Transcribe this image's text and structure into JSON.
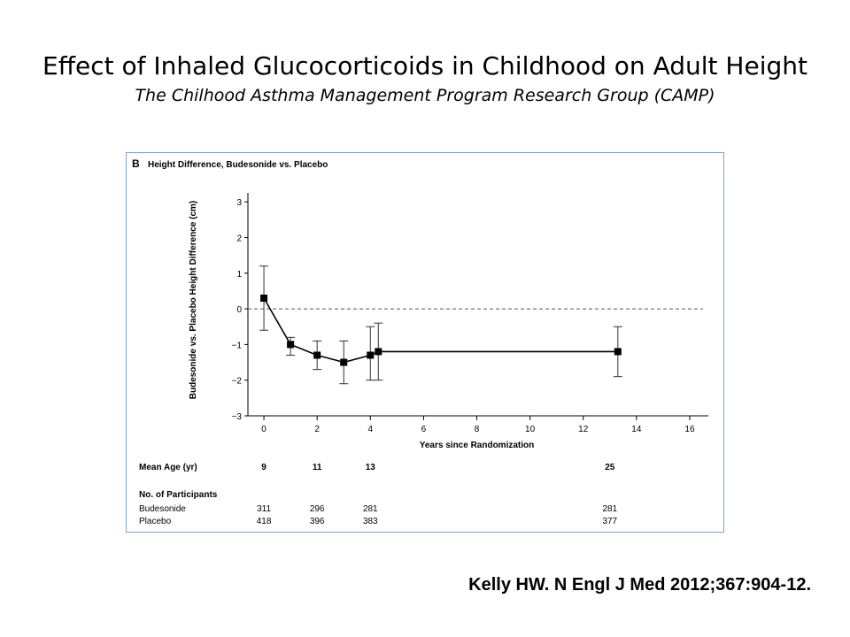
{
  "slide": {
    "title": "Effect of Inhaled Glucocorticoids in Childhood on Adult Height",
    "subtitle": "The Chilhood Asthma Management Program Research Group (CAMP)",
    "citation": "Kelly HW. N Engl J Med 2012;367:904-12."
  },
  "chart_data": {
    "type": "line",
    "panel_letter": "B",
    "title": "Height Difference, Budesonide vs. Placebo",
    "xlabel": "Years since Randomization",
    "ylabel": "Budesonide vs. Placebo Height Difference (cm)",
    "xlim": [
      -1,
      16.7
    ],
    "ylim": [
      -3,
      3.5
    ],
    "x_ticks": [
      0,
      2,
      4,
      6,
      8,
      10,
      12,
      14,
      16
    ],
    "y_ticks": [
      3,
      2,
      1,
      0,
      -1,
      -2,
      -3
    ],
    "y_tick_labels": [
      "3",
      "2",
      "1",
      "0",
      "−1",
      "−2",
      "−3"
    ],
    "reference_line": {
      "y": 0,
      "style": "dashed"
    },
    "series": [
      {
        "points": [
          {
            "x": 0,
            "y": 0.3,
            "lower": -0.6,
            "upper": 1.2
          },
          {
            "x": 1,
            "y": -1.0,
            "lower": -1.3,
            "upper": -0.8
          },
          {
            "x": 2,
            "y": -1.3,
            "lower": -1.7,
            "upper": -0.9
          },
          {
            "x": 3,
            "y": -1.5,
            "lower": -2.1,
            "upper": -0.9
          },
          {
            "x": 4,
            "y": -1.3,
            "lower": -2.0,
            "upper": -0.5
          },
          {
            "x": 4.3,
            "y": -1.2,
            "lower": -2.0,
            "upper": -0.4
          },
          {
            "x": 13.3,
            "y": -1.2,
            "lower": -1.9,
            "upper": -0.5
          }
        ]
      }
    ],
    "mean_age": {
      "label": "Mean Age (yr)",
      "entries": [
        {
          "x": 0,
          "value": "9"
        },
        {
          "x": 2,
          "value": "11"
        },
        {
          "x": 4,
          "value": "13"
        },
        {
          "x": 13,
          "value": "25"
        }
      ]
    },
    "participants": {
      "label": "No. of Participants",
      "columns_x": [
        0,
        2,
        4,
        13
      ],
      "rows": [
        {
          "group": "Budesonide",
          "values": [
            "311",
            "296",
            "281",
            "281"
          ]
        },
        {
          "group": "Placebo",
          "values": [
            "418",
            "396",
            "383",
            "377"
          ]
        }
      ]
    },
    "grid": false
  }
}
